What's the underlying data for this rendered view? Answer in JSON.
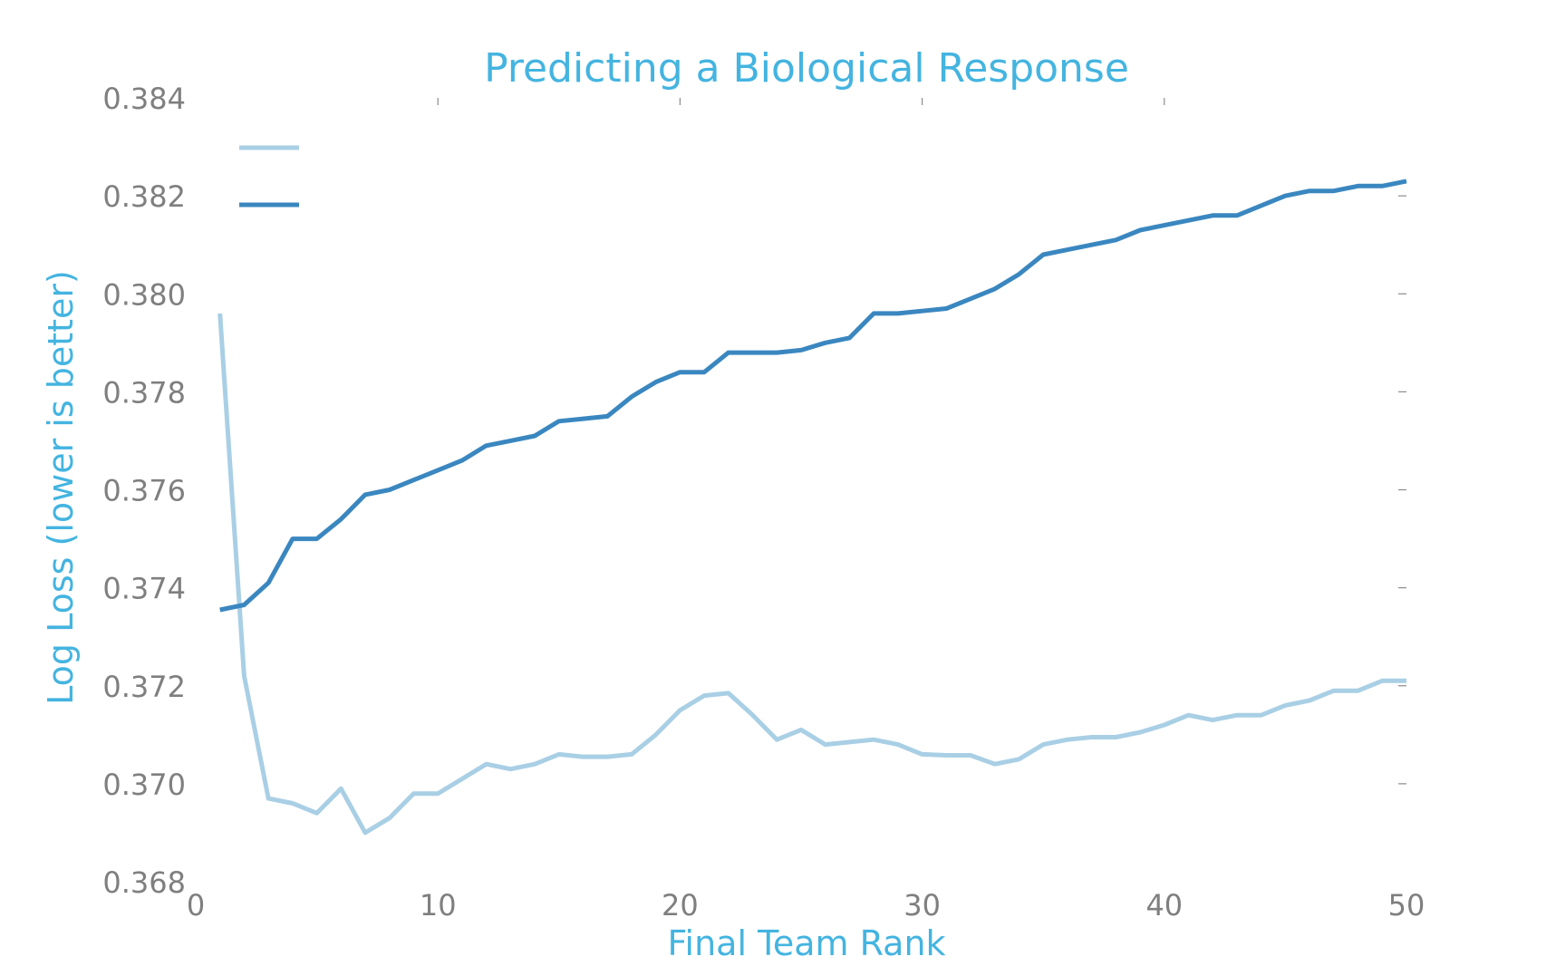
{
  "chart_data": {
    "type": "line",
    "title": "Predicting a Biological Response",
    "xlabel": "Final Team Rank",
    "ylabel": "Log Loss (lower is better)",
    "xlim": [
      0,
      50
    ],
    "ylim": [
      0.368,
      0.384
    ],
    "xticks": [
      0,
      10,
      20,
      30,
      40,
      50
    ],
    "xtick_labels": [
      "0",
      "10",
      "20",
      "30",
      "40",
      "50"
    ],
    "yticks": [
      0.368,
      0.37,
      0.372,
      0.374,
      0.376,
      0.378,
      0.38,
      0.382,
      0.384
    ],
    "ytick_labels": [
      "0.368",
      "0.370",
      "0.372",
      "0.374",
      "0.376",
      "0.378",
      "0.380",
      "0.382",
      "0.384"
    ],
    "grid": false,
    "legend": {
      "placement": "top-left",
      "shows_labels": false
    },
    "x": [
      1,
      2,
      3,
      4,
      5,
      6,
      7,
      8,
      9,
      10,
      11,
      12,
      13,
      14,
      15,
      16,
      17,
      18,
      19,
      20,
      21,
      22,
      23,
      24,
      25,
      26,
      27,
      28,
      29,
      30,
      31,
      32,
      33,
      34,
      35,
      36,
      37,
      38,
      39,
      40,
      41,
      42,
      43,
      44,
      45,
      46,
      47,
      48,
      49,
      50
    ],
    "series": [
      {
        "color": "#a9cfe5",
        "values": [
          0.3796,
          0.3722,
          0.3697,
          0.3696,
          0.3694,
          0.3699,
          0.369,
          0.3693,
          0.3698,
          0.3698,
          0.3701,
          0.3704,
          0.3703,
          0.3704,
          0.3706,
          0.37055,
          0.37055,
          0.3706,
          0.371,
          0.3715,
          0.3718,
          0.37185,
          0.3714,
          0.3709,
          0.3711,
          0.3708,
          0.37085,
          0.3709,
          0.3708,
          0.3706,
          0.37058,
          0.37058,
          0.3704,
          0.3705,
          0.3708,
          0.3709,
          0.37095,
          0.37095,
          0.37105,
          0.3712,
          0.3714,
          0.3713,
          0.3714,
          0.3714,
          0.3716,
          0.3717,
          0.3719,
          0.3719,
          0.3721,
          0.3721
        ]
      },
      {
        "color": "#3a87c0",
        "values": [
          0.37355,
          0.37365,
          0.3741,
          0.375,
          0.375,
          0.3754,
          0.3759,
          0.376,
          0.3762,
          0.3764,
          0.3766,
          0.3769,
          0.377,
          0.3771,
          0.3774,
          0.37745,
          0.3775,
          0.3779,
          0.3782,
          0.3784,
          0.3784,
          0.3788,
          0.3788,
          0.3788,
          0.37885,
          0.379,
          0.3791,
          0.3796,
          0.3796,
          0.37965,
          0.3797,
          0.3799,
          0.3801,
          0.3804,
          0.3808,
          0.3809,
          0.381,
          0.3811,
          0.3813,
          0.3814,
          0.3815,
          0.3816,
          0.3816,
          0.3818,
          0.382,
          0.3821,
          0.3821,
          0.3822,
          0.3822,
          0.3823
        ]
      }
    ]
  }
}
